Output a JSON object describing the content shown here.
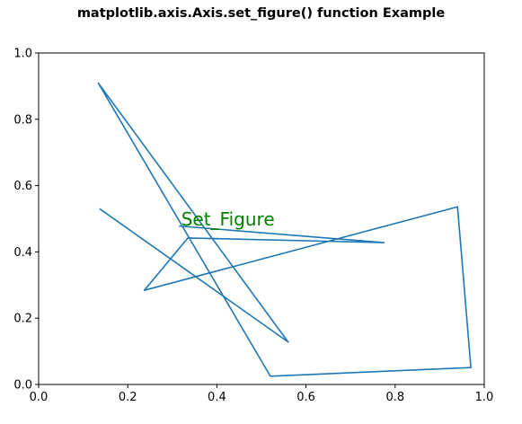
{
  "figure": {
    "title": "matplotlib.axis.Axis.set_figure() function Example"
  },
  "chart_data": {
    "type": "line",
    "title": "matplotlib.axis.Axis.set_figure() function Example",
    "xlabel": "",
    "ylabel": "",
    "xlim": [
      0,
      1
    ],
    "ylim": [
      0,
      1
    ],
    "xticks": [
      "0.0",
      "0.2",
      "0.4",
      "0.6",
      "0.8",
      "1.0"
    ],
    "yticks": [
      "0.0",
      "0.2",
      "0.4",
      "0.6",
      "0.8",
      "1.0"
    ],
    "grid": false,
    "line_color": "#1f77b4",
    "series": [
      {
        "x": [
          0.137,
          0.56,
          0.134,
          0.52,
          0.97,
          0.94,
          0.237,
          0.335,
          0.775,
          0.315
        ],
        "y": [
          0.53,
          0.128,
          0.909,
          0.025,
          0.051,
          0.536,
          0.284,
          0.442,
          0.428,
          0.478
        ]
      }
    ],
    "annotations": [
      {
        "text": "Set_Figure",
        "x": 0.32,
        "y": 0.48,
        "color": "#008000"
      }
    ]
  }
}
